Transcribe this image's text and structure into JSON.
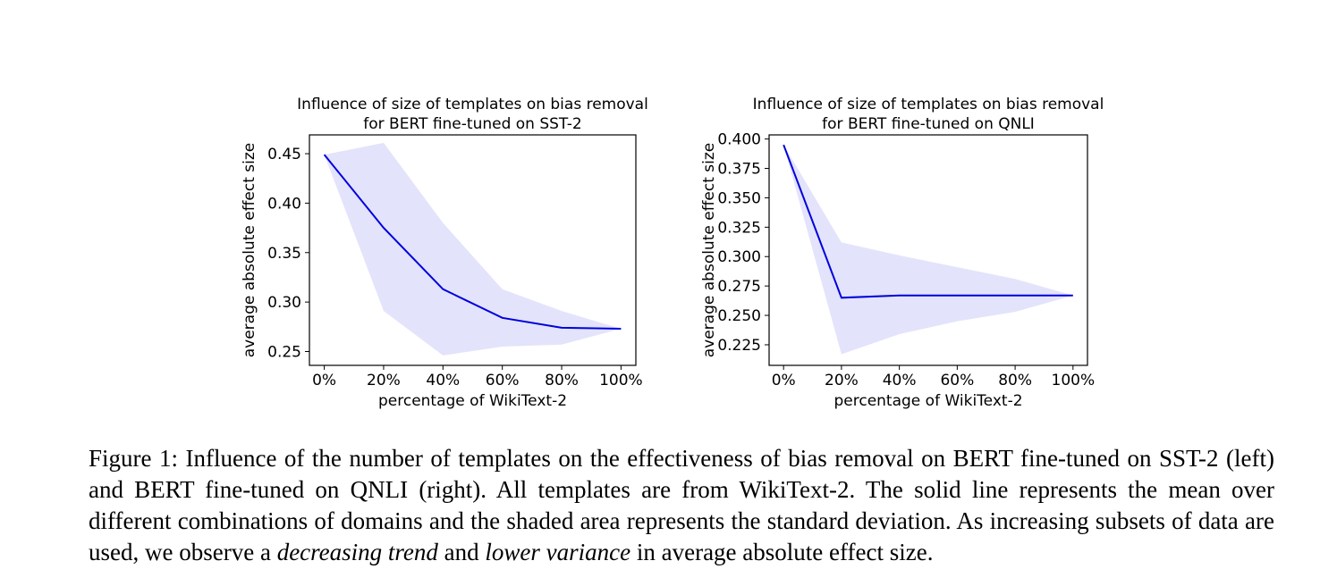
{
  "chart_data": [
    {
      "type": "area",
      "title": [
        "Influence of size of templates on bias removal",
        "for BERT fine-tuned on SST-2"
      ],
      "xlabel": "percentage of WikiText-2",
      "ylabel": "average absolute effect size",
      "x": [
        0,
        20,
        40,
        60,
        80,
        100
      ],
      "xticklabels": [
        "0%",
        "20%",
        "40%",
        "60%",
        "80%",
        "100%"
      ],
      "xlim": [
        -5,
        105
      ],
      "yticks": [
        0.25,
        0.3,
        0.35,
        0.4,
        0.45
      ],
      "yticklabels": [
        "0.25",
        "0.30",
        "0.35",
        "0.40",
        "0.45"
      ],
      "ylim": [
        0.236,
        0.469
      ],
      "series": [
        {
          "values": [
            0.449,
            0.375,
            0.313,
            0.284,
            0.274,
            0.273
          ],
          "upper": [
            0.449,
            0.461,
            0.38,
            0.313,
            0.291,
            0.273
          ],
          "lower": [
            0.449,
            0.291,
            0.246,
            0.255,
            0.257,
            0.273
          ],
          "color": "#0000dd",
          "band_color": "#e3e3fc"
        }
      ],
      "grid": false,
      "legend": "none"
    },
    {
      "type": "area",
      "title": [
        "Influence of size of templates on bias removal",
        "for BERT fine-tuned on QNLI"
      ],
      "xlabel": "percentage of WikiText-2",
      "ylabel": "average absolute effect size",
      "x": [
        0,
        20,
        40,
        60,
        80,
        100
      ],
      "xticklabels": [
        "0%",
        "20%",
        "40%",
        "60%",
        "80%",
        "100%"
      ],
      "xlim": [
        -5,
        105
      ],
      "yticks": [
        0.225,
        0.25,
        0.275,
        0.3,
        0.325,
        0.35,
        0.375,
        0.4
      ],
      "yticklabels": [
        "0.225",
        "0.250",
        "0.275",
        "0.300",
        "0.325",
        "0.350",
        "0.375",
        "0.400"
      ],
      "ylim": [
        0.2075,
        0.4035
      ],
      "series": [
        {
          "values": [
            0.395,
            0.265,
            0.267,
            0.267,
            0.267,
            0.267
          ],
          "upper": [
            0.395,
            0.312,
            0.301,
            0.291,
            0.281,
            0.267
          ],
          "lower": [
            0.395,
            0.217,
            0.234,
            0.245,
            0.253,
            0.267
          ],
          "color": "#0000dd",
          "band_color": "#e3e3fc"
        }
      ],
      "grid": false,
      "legend": "none"
    }
  ],
  "caption": {
    "before_1": "Figure 1: Influence of the number of templates on the effectiveness of bias removal on BERT fine-tuned on SST-2 (left) and BERT fine-tuned on QNLI (right).  All templates are from WikiText-2.  The solid line represents the mean over different combinations of domains and the shaded area represents the standard deviation. As increasing subsets of data are used, we observe a ",
    "em_1": "decreasing trend",
    "middle": " and ",
    "em_2": "lower variance",
    "after": " in average absolute effect size."
  }
}
